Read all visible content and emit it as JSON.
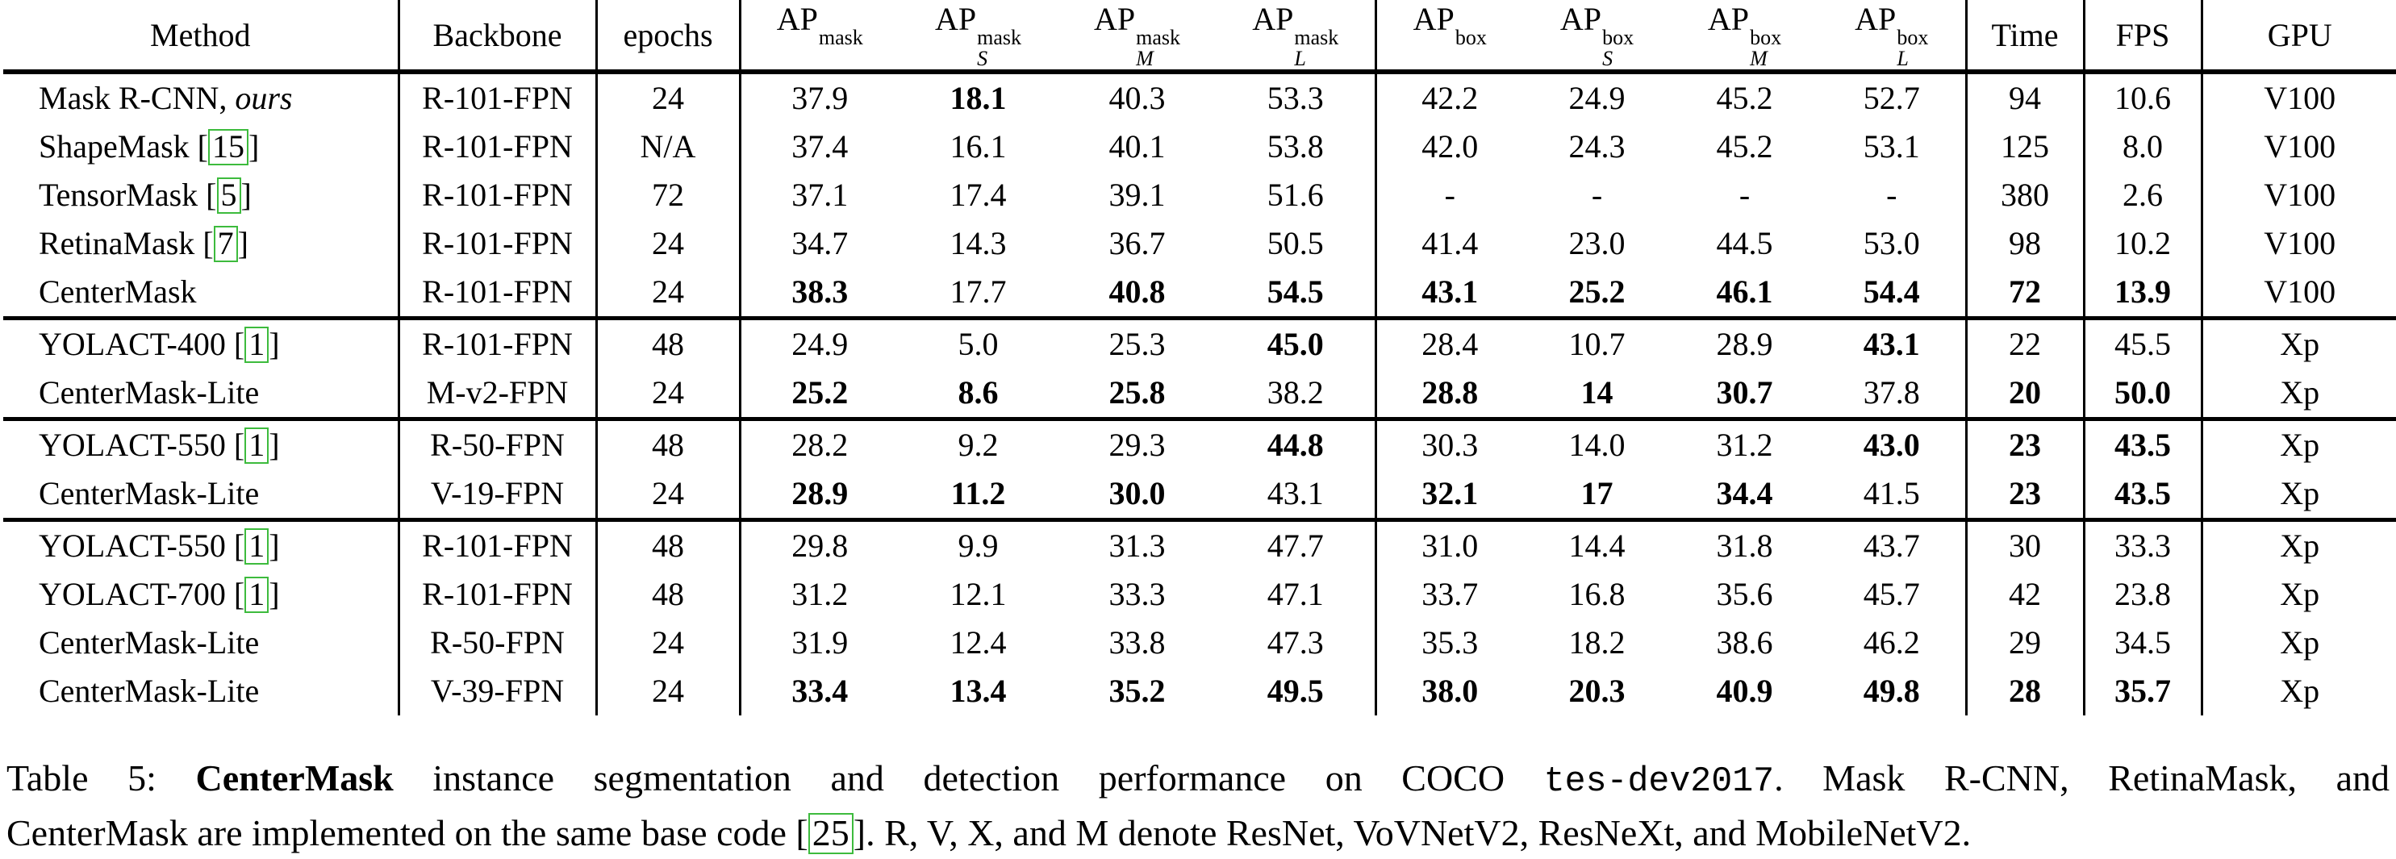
{
  "table": {
    "columns": [
      {
        "label": "Method"
      },
      {
        "label": "Backbone"
      },
      {
        "label": "epochs"
      },
      {
        "base": "AP",
        "sup": "mask",
        "sub": ""
      },
      {
        "base": "AP",
        "sup": "mask",
        "sub": "S"
      },
      {
        "base": "AP",
        "sup": "mask",
        "sub": "M"
      },
      {
        "base": "AP",
        "sup": "mask",
        "sub": "L"
      },
      {
        "base": "AP",
        "sup": "box",
        "sub": ""
      },
      {
        "base": "AP",
        "sup": "box",
        "sub": "S"
      },
      {
        "base": "AP",
        "sup": "box",
        "sub": "M"
      },
      {
        "base": "AP",
        "sup": "box",
        "sub": "L"
      },
      {
        "label": "Time"
      },
      {
        "label": "FPS"
      },
      {
        "label": "GPU"
      }
    ],
    "groups": [
      [
        {
          "method": {
            "name": "Mask R-CNN,",
            "suffix": "ours"
          },
          "backbone": "R-101-FPN",
          "epochs": "24",
          "values": [
            {
              "v": "37.9"
            },
            {
              "v": "18.1",
              "b": 1
            },
            {
              "v": "40.3"
            },
            {
              "v": "53.3"
            },
            {
              "v": "42.2"
            },
            {
              "v": "24.9"
            },
            {
              "v": "45.2"
            },
            {
              "v": "52.7"
            },
            {
              "v": "94"
            },
            {
              "v": "10.6"
            },
            {
              "v": "V100"
            }
          ]
        },
        {
          "method": {
            "name": "ShapeMask",
            "cite": "15"
          },
          "backbone": "R-101-FPN",
          "epochs": "N/A",
          "values": [
            {
              "v": "37.4"
            },
            {
              "v": "16.1"
            },
            {
              "v": "40.1"
            },
            {
              "v": "53.8"
            },
            {
              "v": "42.0"
            },
            {
              "v": "24.3"
            },
            {
              "v": "45.2"
            },
            {
              "v": "53.1"
            },
            {
              "v": "125"
            },
            {
              "v": "8.0"
            },
            {
              "v": "V100"
            }
          ]
        },
        {
          "method": {
            "name": "TensorMask",
            "cite": "5"
          },
          "backbone": "R-101-FPN",
          "epochs": "72",
          "values": [
            {
              "v": "37.1"
            },
            {
              "v": "17.4"
            },
            {
              "v": "39.1"
            },
            {
              "v": "51.6"
            },
            {
              "v": "-"
            },
            {
              "v": "-"
            },
            {
              "v": "-"
            },
            {
              "v": "-"
            },
            {
              "v": "380"
            },
            {
              "v": "2.6"
            },
            {
              "v": "V100"
            }
          ]
        },
        {
          "method": {
            "name": "RetinaMask",
            "cite": "7"
          },
          "backbone": "R-101-FPN",
          "epochs": "24",
          "values": [
            {
              "v": "34.7"
            },
            {
              "v": "14.3"
            },
            {
              "v": "36.7"
            },
            {
              "v": "50.5"
            },
            {
              "v": "41.4"
            },
            {
              "v": "23.0"
            },
            {
              "v": "44.5"
            },
            {
              "v": "53.0"
            },
            {
              "v": "98"
            },
            {
              "v": "10.2"
            },
            {
              "v": "V100"
            }
          ]
        },
        {
          "method": {
            "name": "CenterMask"
          },
          "backbone": "R-101-FPN",
          "epochs": "24",
          "values": [
            {
              "v": "38.3",
              "b": 1
            },
            {
              "v": "17.7"
            },
            {
              "v": "40.8",
              "b": 1
            },
            {
              "v": "54.5",
              "b": 1
            },
            {
              "v": "43.1",
              "b": 1
            },
            {
              "v": "25.2",
              "b": 1
            },
            {
              "v": "46.1",
              "b": 1
            },
            {
              "v": "54.4",
              "b": 1
            },
            {
              "v": "72",
              "b": 1
            },
            {
              "v": "13.9",
              "b": 1
            },
            {
              "v": "V100"
            }
          ]
        }
      ],
      [
        {
          "method": {
            "name": "YOLACT-400",
            "cite": "1"
          },
          "backbone": "R-101-FPN",
          "epochs": "48",
          "values": [
            {
              "v": "24.9"
            },
            {
              "v": "5.0"
            },
            {
              "v": "25.3"
            },
            {
              "v": "45.0",
              "b": 1
            },
            {
              "v": "28.4"
            },
            {
              "v": "10.7"
            },
            {
              "v": "28.9"
            },
            {
              "v": "43.1",
              "b": 1
            },
            {
              "v": "22"
            },
            {
              "v": "45.5"
            },
            {
              "v": "Xp"
            }
          ]
        },
        {
          "method": {
            "name": "CenterMask-Lite"
          },
          "backbone": "M-v2-FPN",
          "epochs": "24",
          "values": [
            {
              "v": "25.2",
              "b": 1
            },
            {
              "v": "8.6",
              "b": 1
            },
            {
              "v": "25.8",
              "b": 1
            },
            {
              "v": "38.2"
            },
            {
              "v": "28.8",
              "b": 1
            },
            {
              "v": "14",
              "b": 1
            },
            {
              "v": "30.7",
              "b": 1
            },
            {
              "v": "37.8"
            },
            {
              "v": "20",
              "b": 1
            },
            {
              "v": "50.0",
              "b": 1
            },
            {
              "v": "Xp"
            }
          ]
        }
      ],
      [
        {
          "method": {
            "name": "YOLACT-550",
            "cite": "1"
          },
          "backbone": "R-50-FPN",
          "epochs": "48",
          "values": [
            {
              "v": "28.2"
            },
            {
              "v": "9.2"
            },
            {
              "v": "29.3"
            },
            {
              "v": "44.8",
              "b": 1
            },
            {
              "v": "30.3"
            },
            {
              "v": "14.0"
            },
            {
              "v": "31.2"
            },
            {
              "v": "43.0",
              "b": 1
            },
            {
              "v": "23",
              "b": 1
            },
            {
              "v": "43.5",
              "b": 1
            },
            {
              "v": "Xp"
            }
          ]
        },
        {
          "method": {
            "name": "CenterMask-Lite"
          },
          "backbone": "V-19-FPN",
          "epochs": "24",
          "values": [
            {
              "v": "28.9",
              "b": 1
            },
            {
              "v": "11.2",
              "b": 1
            },
            {
              "v": "30.0",
              "b": 1
            },
            {
              "v": "43.1"
            },
            {
              "v": "32.1",
              "b": 1
            },
            {
              "v": "17",
              "b": 1
            },
            {
              "v": "34.4",
              "b": 1
            },
            {
              "v": "41.5"
            },
            {
              "v": "23",
              "b": 1
            },
            {
              "v": "43.5",
              "b": 1
            },
            {
              "v": "Xp"
            }
          ]
        }
      ],
      [
        {
          "method": {
            "name": "YOLACT-550",
            "cite": "1"
          },
          "backbone": "R-101-FPN",
          "epochs": "48",
          "values": [
            {
              "v": "29.8"
            },
            {
              "v": "9.9"
            },
            {
              "v": "31.3"
            },
            {
              "v": "47.7"
            },
            {
              "v": "31.0"
            },
            {
              "v": "14.4"
            },
            {
              "v": "31.8"
            },
            {
              "v": "43.7"
            },
            {
              "v": "30"
            },
            {
              "v": "33.3"
            },
            {
              "v": "Xp"
            }
          ]
        },
        {
          "method": {
            "name": "YOLACT-700",
            "cite": "1"
          },
          "backbone": "R-101-FPN",
          "epochs": "48",
          "values": [
            {
              "v": "31.2"
            },
            {
              "v": "12.1"
            },
            {
              "v": "33.3"
            },
            {
              "v": "47.1"
            },
            {
              "v": "33.7"
            },
            {
              "v": "16.8"
            },
            {
              "v": "35.6"
            },
            {
              "v": "45.7"
            },
            {
              "v": "42"
            },
            {
              "v": "23.8"
            },
            {
              "v": "Xp"
            }
          ]
        },
        {
          "method": {
            "name": "CenterMask-Lite"
          },
          "backbone": "R-50-FPN",
          "epochs": "24",
          "values": [
            {
              "v": "31.9"
            },
            {
              "v": "12.4"
            },
            {
              "v": "33.8"
            },
            {
              "v": "47.3"
            },
            {
              "v": "35.3"
            },
            {
              "v": "18.2"
            },
            {
              "v": "38.6"
            },
            {
              "v": "46.2"
            },
            {
              "v": "29"
            },
            {
              "v": "34.5"
            },
            {
              "v": "Xp"
            }
          ]
        },
        {
          "method": {
            "name": "CenterMask-Lite"
          },
          "backbone": "V-39-FPN",
          "epochs": "24",
          "values": [
            {
              "v": "33.4",
              "b": 1
            },
            {
              "v": "13.4",
              "b": 1
            },
            {
              "v": "35.2",
              "b": 1
            },
            {
              "v": "49.5",
              "b": 1
            },
            {
              "v": "38.0",
              "b": 1
            },
            {
              "v": "20.3",
              "b": 1
            },
            {
              "v": "40.9",
              "b": 1
            },
            {
              "v": "49.8",
              "b": 1
            },
            {
              "v": "28",
              "b": 1
            },
            {
              "v": "35.7",
              "b": 1
            },
            {
              "v": "Xp"
            }
          ]
        }
      ]
    ]
  },
  "caption": {
    "prefix": "Table 5: ",
    "bold_name": "CenterMask",
    "mid": " instance segmentation and detection performance on COCO ",
    "code": "tes-dev2017",
    "line1_end": ". Mask R-CNN, RetinaMask, and",
    "line2_pre": "CenterMask are implemented on the same base code [",
    "cite": "25",
    "line2_post": "]. R, V, X, and M denote ResNet, VoVNetV2, ResNeXt, and MobileNetV2.",
    "green_color": "#3dbb3d"
  }
}
